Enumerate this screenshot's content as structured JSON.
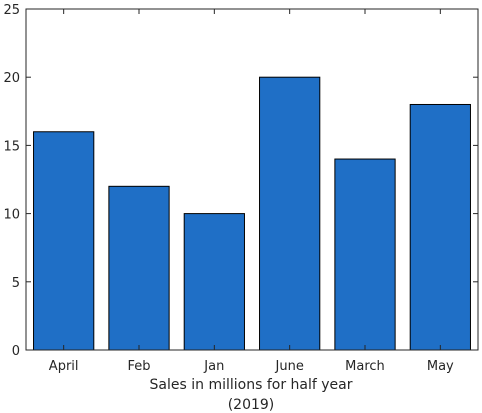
{
  "chart_data": {
    "type": "bar",
    "categories": [
      "April",
      "Feb",
      "Jan",
      "June",
      "March",
      "May"
    ],
    "values": [
      16,
      12,
      10,
      20,
      14,
      18
    ],
    "title": "",
    "xlabel": [
      "Sales in millions for half year",
      "(2019)"
    ],
    "ylabel": "",
    "ylim": [
      0,
      25
    ],
    "yticks": [
      0,
      5,
      10,
      15,
      20,
      25
    ],
    "grid": false,
    "bar_color": "#1f6fc6",
    "bar_edge_color": "#000000",
    "axis_color": "#262626"
  }
}
